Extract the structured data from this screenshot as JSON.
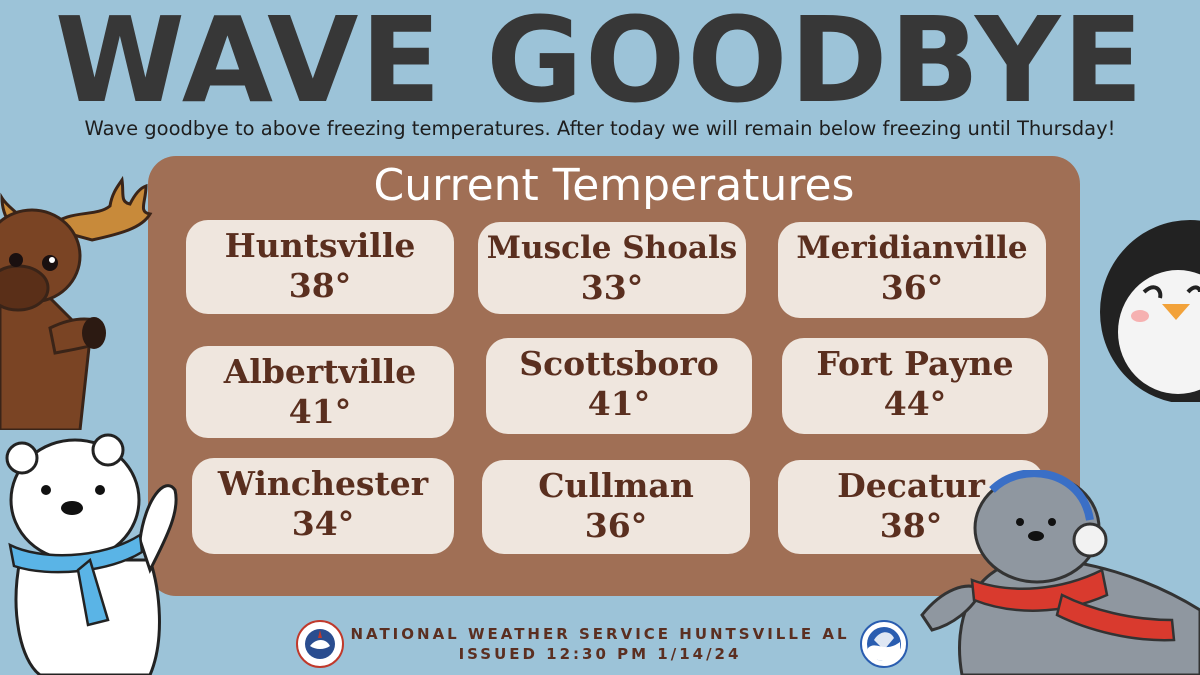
{
  "header": {
    "title": "WAVE GOODBYE",
    "subtitle": "Wave goodbye to above freezing temperatures. After today we will remain below freezing until Thursday!"
  },
  "panel": {
    "title": "Current Temperatures",
    "cities": [
      {
        "name": "Huntsville",
        "temp": "38°"
      },
      {
        "name": "Muscle Shoals",
        "temp": "33°"
      },
      {
        "name": "Meridianville",
        "temp": "36°"
      },
      {
        "name": "Albertville",
        "temp": "41°"
      },
      {
        "name": "Scottsboro",
        "temp": "41°"
      },
      {
        "name": "Fort Payne",
        "temp": "44°"
      },
      {
        "name": "Winchester",
        "temp": "34°"
      },
      {
        "name": "Cullman",
        "temp": "36°"
      },
      {
        "name": "Decatur",
        "temp": "38°"
      }
    ]
  },
  "footer": {
    "office": "NATIONAL WEATHER SERVICE HUNTSVILLE AL",
    "issued": "ISSUED 12:30 PM 1/14/24"
  },
  "colors": {
    "background": "#9cc3d8",
    "panel": "#a06f55",
    "card": "#efe6de",
    "card_text": "#5a2f1f",
    "title_text": "#373737"
  },
  "icons": [
    "moose-illustration",
    "polar-bear-illustration",
    "penguin-illustration",
    "seal-illustration",
    "nws-logo-icon",
    "noaa-logo-icon"
  ]
}
